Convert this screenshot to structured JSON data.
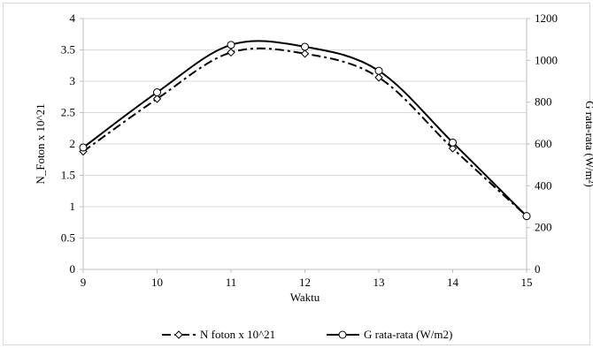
{
  "chart_data": {
    "type": "line",
    "title": "",
    "xlabel": "Waktu",
    "ylabel_left": "N_Foton x 10^21",
    "ylabel_right": "G rata-rata (W/m²)",
    "x": [
      9,
      10,
      11,
      12,
      13,
      14,
      15
    ],
    "x_ticks": [
      "9",
      "10",
      "11",
      "12",
      "13",
      "14",
      "15"
    ],
    "xlim": [
      9,
      15
    ],
    "ylim_left": [
      0,
      4
    ],
    "ylim_right": [
      0,
      1200
    ],
    "left_ticks": [
      "0",
      "0.5",
      "1",
      "1.5",
      "2",
      "2.5",
      "3",
      "3.5",
      "4"
    ],
    "right_ticks": [
      "0",
      "200",
      "400",
      "600",
      "800",
      "1000",
      "1200"
    ],
    "grid": "horizontal",
    "legend_position": "bottom",
    "series": [
      {
        "name": "N foton x 10^21",
        "axis": "left",
        "style": "dash-dot",
        "marker": "diamond",
        "color": "#000000",
        "values": [
          1.88,
          2.72,
          3.46,
          3.44,
          3.06,
          1.93,
          0.85
        ]
      },
      {
        "name": "G rata-rata (W/m2)",
        "axis": "right",
        "style": "solid",
        "marker": "circle",
        "color": "#000000",
        "values": [
          583,
          847,
          1074,
          1065,
          950,
          607,
          255
        ]
      }
    ]
  }
}
